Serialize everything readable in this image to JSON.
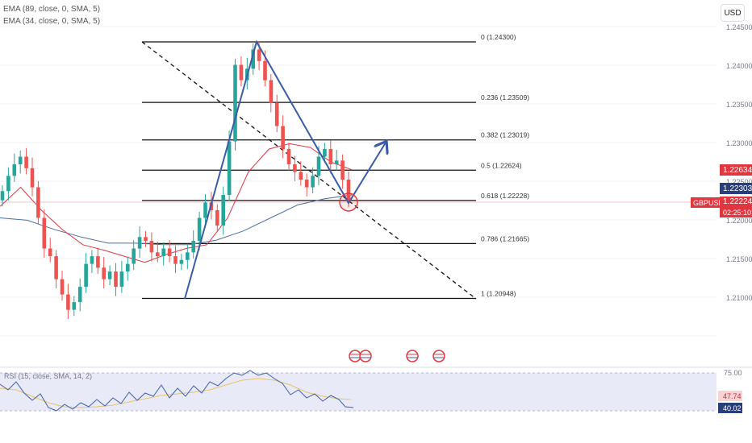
{
  "currency": "USD",
  "indicators": {
    "ema89": "EMA (89, close, 0, SMA, 5)",
    "ema34": "EMA (34, close, 0, SMA, 5)",
    "rsi": "RSI (15, close, SMA, 14, 2)"
  },
  "price_axis": {
    "ticks": [
      "1.24500",
      "1.24000",
      "1.23500",
      "1.23000",
      "1.22500",
      "1.22000",
      "1.21500",
      "1.21000"
    ]
  },
  "price_labels": {
    "ema34_value": "1.22634",
    "ema89_value": "1.22303",
    "symbol": "GBPUSD",
    "last_price": "1.22224",
    "countdown": "02:25:10"
  },
  "rsi_axis": {
    "top": "75.00",
    "value_a": "47.74",
    "value_b": "40.02"
  },
  "colors": {
    "bull": "#26a69a",
    "bear": "#ef5350",
    "ema34": "#e0363f",
    "ema89": "#4a6fa5",
    "drawing": "#3b5ba9",
    "rsi_band": "#e8eaf8"
  },
  "chart_data": {
    "type": "candlestick",
    "symbol": "GBPUSD",
    "ylim": [
      1.2055,
      1.2465
    ],
    "fibonacci": [
      {
        "ratio": "0",
        "price": 1.243,
        "label": "0 (1.24300)"
      },
      {
        "ratio": "0.236",
        "price": 1.23509,
        "label": "0.236 (1.23509)"
      },
      {
        "ratio": "0.382",
        "price": 1.23019,
        "label": "0.382 (1.23019)"
      },
      {
        "ratio": "0.5",
        "price": 1.22624,
        "label": "0.5 (1.22624)"
      },
      {
        "ratio": "0.618",
        "price": 1.22228,
        "label": "0.618 (1.22228)"
      },
      {
        "ratio": "0.786",
        "price": 1.21665,
        "label": "0.786 (1.21665)"
      },
      {
        "ratio": "1",
        "price": 1.20948,
        "label": "1 (1.20948)"
      }
    ],
    "closes": [
      1.2235,
      1.2255,
      1.227,
      1.228,
      1.2265,
      1.224,
      1.22,
      1.216,
      1.215,
      1.212,
      1.21,
      1.208,
      1.209,
      1.211,
      1.214,
      1.215,
      1.2135,
      1.212,
      1.213,
      1.211,
      1.213,
      1.214,
      1.216,
      1.2175,
      1.217,
      1.2155,
      1.215,
      1.216,
      1.215,
      1.214,
      1.2145,
      1.2155,
      1.217,
      1.22,
      1.222,
      1.221,
      1.219,
      1.223,
      1.23,
      1.24,
      1.238,
      1.2395,
      1.242,
      1.2405,
      1.238,
      1.235,
      1.232,
      1.229,
      1.227,
      1.226,
      1.225,
      1.224,
      1.2255,
      1.228,
      1.229,
      1.227,
      1.2275,
      1.225,
      1.2222
    ],
    "ema34": [
      1.2215,
      1.224,
      1.221,
      1.2185,
      1.2165,
      1.2158,
      1.215,
      1.2142,
      1.2152,
      1.216,
      1.2165,
      1.22,
      1.226,
      1.229,
      1.2297,
      1.2292,
      1.2273,
      1.2263
    ],
    "ema89": [
      1.22,
      1.2197,
      1.2185,
      1.2175,
      1.2167,
      1.2167,
      1.2165,
      1.2165,
      1.2171,
      1.2183,
      1.22,
      1.2217,
      1.2225,
      1.223
    ]
  }
}
